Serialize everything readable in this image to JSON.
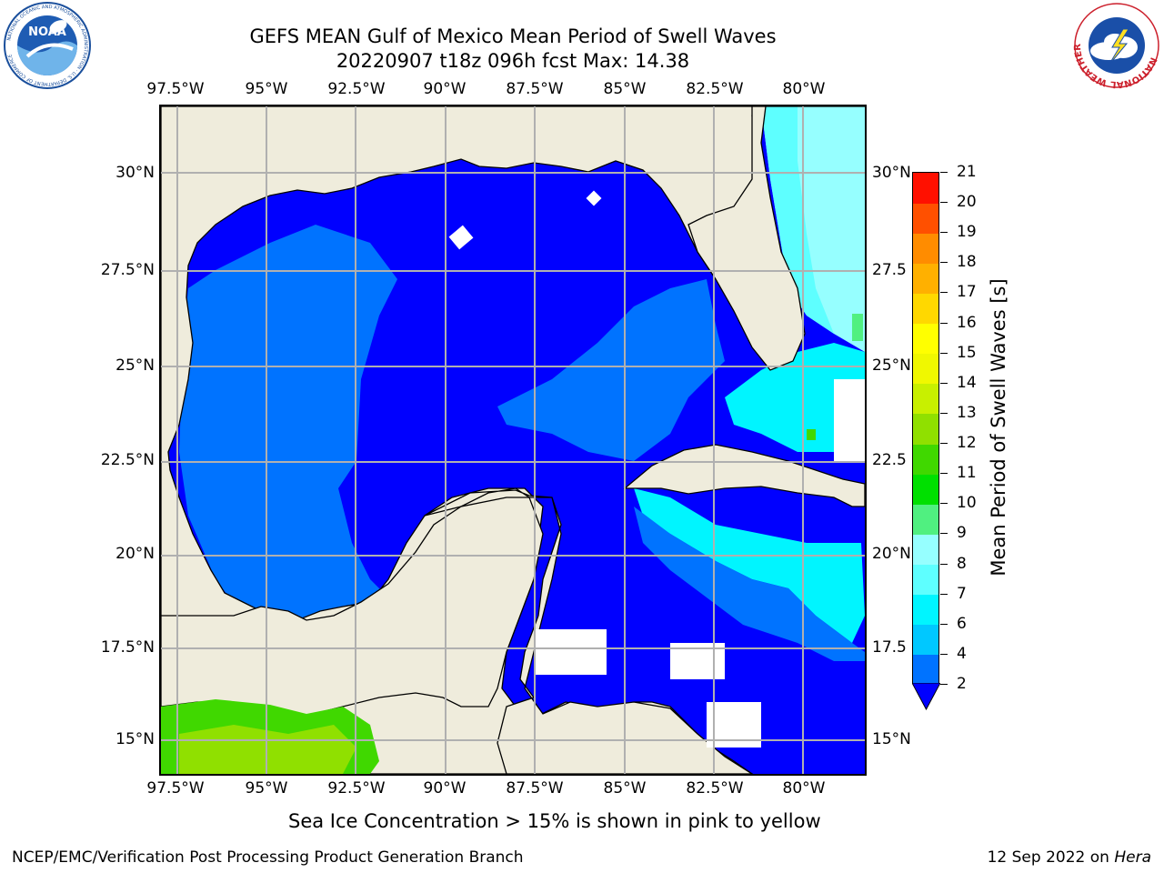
{
  "title": {
    "line1": "GEFS MEAN Gulf of Mexico Mean Period of Swell Waves",
    "line2": "20220907 t18z 096h fcst   Max: 14.38"
  },
  "logos": {
    "left": "noaa-logo",
    "left_text": "NOAA",
    "left_ring": "NATIONAL OCEANIC AND ATMOSPHERIC ADMINISTRATION · U.S. DEPARTMENT OF COMMERCE",
    "right": "national-weather-service-logo",
    "right_ring": "NATIONAL WEATHER SERVICE"
  },
  "map": {
    "lon_labels": [
      "97.5°W",
      "95°W",
      "92.5°W",
      "90°W",
      "87.5°W",
      "85°W",
      "82.5°W",
      "80°W"
    ],
    "lat_labels_left": [
      "30°N",
      "27.5°N",
      "25°N",
      "22.5°N",
      "20°N",
      "17.5°N",
      "15°N"
    ],
    "lat_labels_right": [
      "30°N",
      "27.5",
      "25°N",
      "22.5",
      "20°N",
      "17.5",
      "15°N"
    ],
    "land_color": "#efecdc",
    "grid_color": "#b0b0b0"
  },
  "colorbar": {
    "title": "Mean Period of Swell Waves [s]",
    "ticks": [
      "2",
      "4",
      "6",
      "7",
      "8",
      "9",
      "10",
      "11",
      "12",
      "13",
      "14",
      "15",
      "16",
      "17",
      "18",
      "19",
      "20",
      "21"
    ],
    "colors": [
      "#0073ff",
      "#00c8ff",
      "#00f5ff",
      "#5effff",
      "#96ffff",
      "#50f080",
      "#00e000",
      "#40d800",
      "#90e000",
      "#c8f000",
      "#f0f800",
      "#ffff00",
      "#ffd800",
      "#ffb000",
      "#ff8c00",
      "#ff5000",
      "#ff1000"
    ],
    "under_color": "#0000ff"
  },
  "note": "Sea Ice Concentration > 15% is shown in pink to yellow",
  "footer": {
    "left": "NCEP/EMC/Verification Post Processing Product Generation Branch",
    "date": "12 Sep 2022 on ",
    "machine": "Hera"
  }
}
